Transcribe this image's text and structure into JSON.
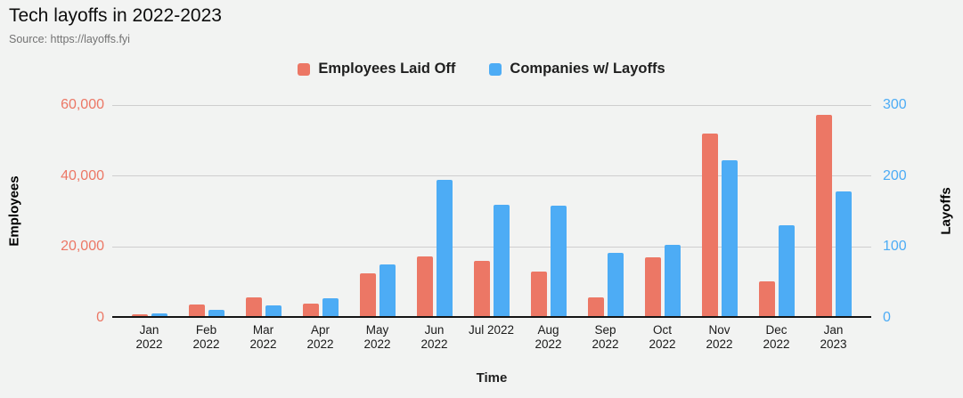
{
  "header": {
    "title": "Tech layoffs in 2022-2023",
    "source": "Source: https://layoffs.fyi"
  },
  "colors": {
    "background": "#f2f3f2",
    "employees": "#ec7765",
    "companies": "#4dacf5",
    "gridline": "#cecece",
    "baseline": "#141414",
    "x_label": "#1a1a1a"
  },
  "legend": {
    "items": [
      {
        "label": "Employees Laid Off",
        "color": "#ec7765"
      },
      {
        "label": "Companies w/ Layoffs",
        "color": "#4dacf5"
      }
    ]
  },
  "chart_data": {
    "type": "bar",
    "title": "Tech layoffs in 2022-2023",
    "categories": [
      "Jan 2022",
      "Feb 2022",
      "Mar 2022",
      "Apr 2022",
      "May 2022",
      "Jun 2022",
      "Jul 2022",
      "Aug 2022",
      "Sep 2022",
      "Oct 2022",
      "Nov 2022",
      "Dec 2022",
      "Jan 2023"
    ],
    "series": [
      {
        "name": "Employees Laid Off",
        "axis": "left",
        "color": "#ec7765",
        "values": [
          900,
          3700,
          5900,
          4100,
          12500,
          17400,
          16000,
          13000,
          5700,
          17100,
          51900,
          10200,
          57200
        ]
      },
      {
        "name": "Companies w/ Layoffs",
        "axis": "right",
        "color": "#4dacf5",
        "values": [
          6,
          11,
          17,
          28,
          75,
          194,
          160,
          158,
          92,
          103,
          222,
          130,
          178
        ]
      }
    ],
    "left_axis": {
      "label": "Employees",
      "ticks": [
        "0",
        "20,000",
        "40,000",
        "60,000"
      ],
      "min": 0,
      "max": 60000,
      "color": "#ec7765"
    },
    "right_axis": {
      "label": "Layoffs",
      "ticks": [
        "0",
        "100",
        "200",
        "300"
      ],
      "min": 0,
      "max": 300,
      "color": "#4dacf5"
    },
    "x_axis": {
      "label": "Time",
      "single_line_indices": [
        6
      ]
    },
    "grid": true,
    "legend_position": "top"
  }
}
